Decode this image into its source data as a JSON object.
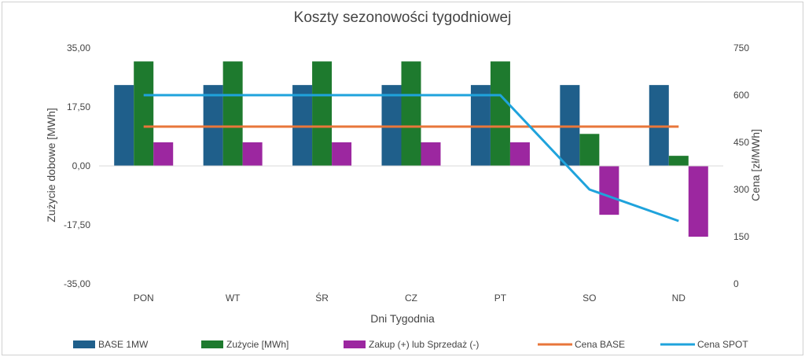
{
  "chart_data": {
    "type": "bar",
    "title": "Koszty sezonowości tygodniowej",
    "xlabel": "Dni Tygodnia",
    "ylabel": "Zużycie dobowe [MWh]",
    "y2label": "Cena [zł/MWh]",
    "categories": [
      "PON",
      "WT",
      "ŚR",
      "CZ",
      "PT",
      "SO",
      "ND"
    ],
    "ylim": [
      -35,
      35
    ],
    "yticks": [
      "35,00",
      "17,50",
      "0,00",
      "-17,50",
      "-35,00"
    ],
    "y2lim": [
      0,
      750
    ],
    "y2ticks": [
      "750",
      "600",
      "450",
      "300",
      "150",
      "0"
    ],
    "bar_series": [
      {
        "name": "BASE 1MW",
        "color": "#1f5f8b",
        "values": [
          24,
          24,
          24,
          24,
          24,
          24,
          24
        ]
      },
      {
        "name": "Zużycie [MWh]",
        "color": "#1e7a2e",
        "values": [
          31,
          31,
          31,
          31,
          31,
          9.5,
          3
        ]
      },
      {
        "name": "Zakup (+) lub Sprzedaż (-)",
        "color": "#9c27a0",
        "values": [
          7,
          7,
          7,
          7,
          7,
          -14.5,
          -21
        ]
      }
    ],
    "line_series": [
      {
        "name": "Cena BASE",
        "color": "#e8763a",
        "axis": "secondary",
        "values": [
          500,
          500,
          500,
          500,
          500,
          500,
          500
        ]
      },
      {
        "name": "Cena SPOT",
        "color": "#1fa3dc",
        "axis": "secondary",
        "values": [
          600,
          600,
          600,
          600,
          600,
          300,
          200
        ]
      }
    ],
    "legend": [
      "BASE 1MW",
      "Zużycie [MWh]",
      "Zakup (+) lub Sprzedaż (-)",
      "Cena BASE",
      "Cena SPOT"
    ],
    "legend_position": "bottom",
    "grid": false
  }
}
